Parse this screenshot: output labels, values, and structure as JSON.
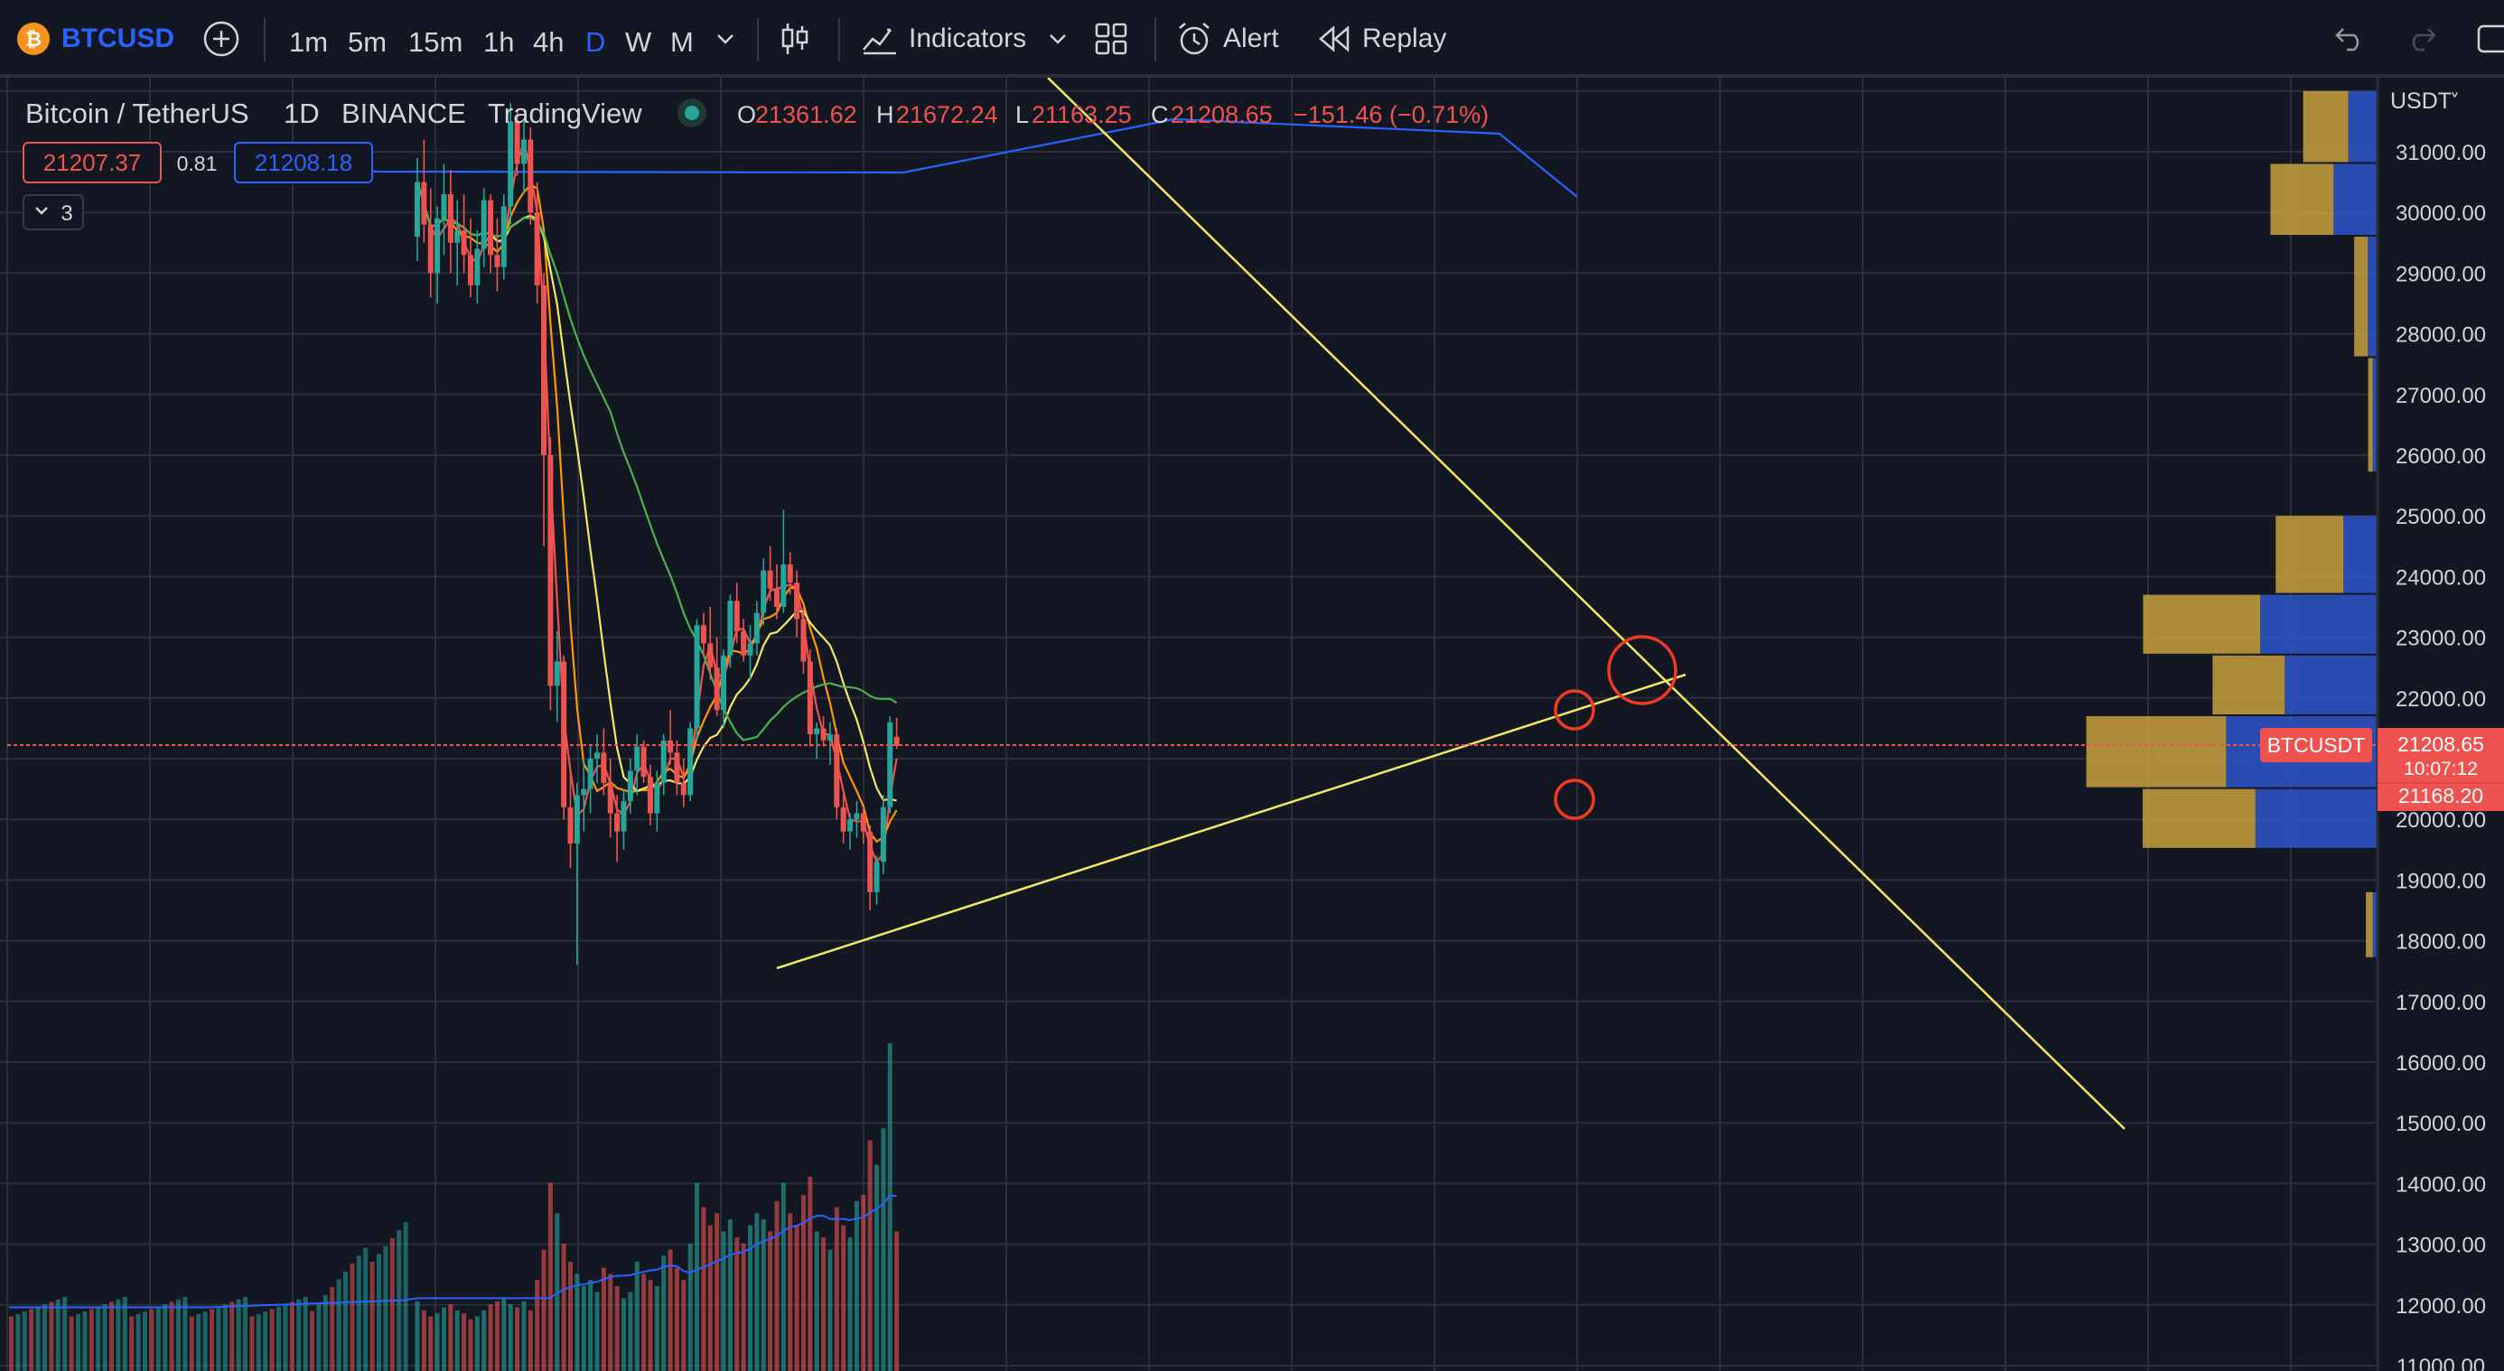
{
  "toolbar": {
    "symbol": "BTCUSD",
    "timeframes": [
      "1m",
      "5m",
      "15m",
      "1h",
      "4h",
      "D",
      "W",
      "M"
    ],
    "active_timeframe": "D",
    "indicators_label": "Indicators",
    "alert_label": "Alert",
    "replay_label": "Replay"
  },
  "legend": {
    "title": "Bitcoin / TetherUS",
    "interval": "1D",
    "exchange": "BINANCE",
    "source": "TradingView",
    "o_label": "O",
    "o": "21361.62",
    "h_label": "H",
    "h": "21672.24",
    "l_label": "L",
    "l": "21163.25",
    "c_label": "C",
    "c": "21208.65",
    "change": "−151.46 (−0.71%)",
    "bid": "21207.37",
    "spread": "0.81",
    "ask": "21208.18",
    "indicators_count": "3"
  },
  "price_axis": {
    "currency": "USDT",
    "ticks": [
      "31000.00",
      "30000.00",
      "29000.00",
      "28000.00",
      "27000.00",
      "26000.00",
      "25000.00",
      "24000.00",
      "23000.00",
      "22000.00",
      "21000.00",
      "20000.00",
      "19000.00",
      "18000.00",
      "17000.00",
      "16000.00",
      "15000.00",
      "14000.00",
      "13000.00",
      "12000.00",
      "11000.00"
    ],
    "symbol_tag": "BTCUSDT",
    "last_price": "21208.65",
    "countdown": "10:07:12",
    "low_price": "21168.20"
  },
  "colors": {
    "background": "#131722",
    "grid": "#2a2e39",
    "up": "#26a69a",
    "down": "#ef5350",
    "trendline": "#f5e663",
    "circle": "#ef3a24",
    "ma_red": "#ef5350",
    "ma_orange": "#ff9800",
    "ma_yellow": "#f5e663",
    "ma_green": "#4caf50",
    "ma_blue": "#2962ff",
    "vp_up": "#c8a13c",
    "vp_down": "#2f56c9"
  },
  "chart_data": {
    "type": "candlestick",
    "symbol": "Bitcoin / TetherUS",
    "interval": "1D",
    "ylim": [
      10800,
      32500
    ],
    "ohlc": [
      [
        29600,
        30900,
        29200,
        30500
      ],
      [
        30500,
        31200,
        29500,
        29800
      ],
      [
        29800,
        30400,
        28600,
        29000
      ],
      [
        29000,
        30100,
        28500,
        29900
      ],
      [
        29900,
        30800,
        29300,
        30300
      ],
      [
        30300,
        30700,
        29000,
        29500
      ],
      [
        29500,
        30200,
        28800,
        29700
      ],
      [
        29700,
        30300,
        29000,
        29300
      ],
      [
        29300,
        29900,
        28600,
        28800
      ],
      [
        28800,
        29700,
        28500,
        29400
      ],
      [
        29400,
        30400,
        29100,
        30200
      ],
      [
        30200,
        30300,
        29000,
        29300
      ],
      [
        29300,
        29900,
        28700,
        29100
      ],
      [
        29100,
        30300,
        28900,
        30100
      ],
      [
        30100,
        31800,
        29800,
        31500
      ],
      [
        31500,
        31700,
        30600,
        30800
      ],
      [
        30800,
        31500,
        30300,
        31200
      ],
      [
        31200,
        31400,
        29800,
        30000
      ],
      [
        30000,
        30500,
        28500,
        28800
      ],
      [
        28800,
        29000,
        24500,
        26000
      ],
      [
        26000,
        26300,
        21800,
        22200
      ],
      [
        22200,
        23100,
        21600,
        22600
      ],
      [
        22600,
        22700,
        20000,
        20200
      ],
      [
        20200,
        20800,
        19200,
        19600
      ],
      [
        19600,
        20600,
        17600,
        20400
      ],
      [
        20400,
        21000,
        19800,
        20500
      ],
      [
        20500,
        21200,
        20100,
        21000
      ],
      [
        21000,
        21400,
        20600,
        21100
      ],
      [
        21100,
        21500,
        20400,
        20600
      ],
      [
        20600,
        21000,
        19700,
        20100
      ],
      [
        20100,
        20400,
        19300,
        19800
      ],
      [
        19800,
        20500,
        19500,
        20300
      ],
      [
        20300,
        21000,
        20100,
        20800
      ],
      [
        20800,
        21400,
        20400,
        21200
      ],
      [
        21200,
        21300,
        20600,
        20700
      ],
      [
        20700,
        20900,
        19900,
        20100
      ],
      [
        20100,
        20800,
        19800,
        20600
      ],
      [
        20600,
        21400,
        20400,
        21300
      ],
      [
        21300,
        21800,
        20900,
        21100
      ],
      [
        21100,
        21300,
        20400,
        20600
      ],
      [
        20600,
        21000,
        20200,
        20400
      ],
      [
        20400,
        21600,
        20300,
        21500
      ],
      [
        21500,
        23300,
        21300,
        23200
      ],
      [
        23200,
        23400,
        22700,
        22900
      ],
      [
        22900,
        23500,
        22300,
        22500
      ],
      [
        22500,
        23000,
        21700,
        21800
      ],
      [
        21800,
        22800,
        21500,
        22700
      ],
      [
        22700,
        23700,
        22500,
        23600
      ],
      [
        23600,
        23900,
        22900,
        23100
      ],
      [
        23100,
        23300,
        22600,
        22700
      ],
      [
        22700,
        23200,
        22300,
        22900
      ],
      [
        22900,
        23600,
        22700,
        23400
      ],
      [
        23400,
        24300,
        23200,
        24100
      ],
      [
        24100,
        24500,
        23600,
        23800
      ],
      [
        23800,
        24200,
        23300,
        23500
      ],
      [
        23500,
        25100,
        23400,
        24200
      ],
      [
        24200,
        24400,
        23700,
        23900
      ],
      [
        23900,
        24100,
        23000,
        23300
      ],
      [
        23300,
        23500,
        22400,
        22600
      ],
      [
        22600,
        22800,
        21200,
        21400
      ],
      [
        21400,
        21600,
        21000,
        21500
      ],
      [
        21500,
        21700,
        21200,
        21300
      ],
      [
        21300,
        21600,
        20900,
        21400
      ],
      [
        21400,
        21500,
        20000,
        20200
      ],
      [
        20200,
        20400,
        19600,
        19800
      ],
      [
        19800,
        20100,
        19500,
        20000
      ],
      [
        20000,
        20300,
        19700,
        20100
      ],
      [
        20100,
        20200,
        19600,
        19800
      ],
      [
        19800,
        19900,
        18500,
        18800
      ],
      [
        18800,
        19400,
        18600,
        19300
      ],
      [
        19300,
        20400,
        19100,
        20200
      ],
      [
        20200,
        21700,
        20100,
        21600
      ],
      [
        21361.62,
        21672.24,
        21163.25,
        21208.65
      ]
    ],
    "volume": [
      11950,
      11800,
      11700,
      11750,
      11850,
      11900,
      11800,
      11750,
      11650,
      11700,
      11800,
      11900,
      11950,
      12000,
      11900,
      11850,
      11950,
      11800,
      12300,
      12800,
      13900,
      13400,
      12900,
      12600,
      12400,
      12200,
      12300,
      12100,
      12500,
      12400,
      12200,
      12000,
      12100,
      12600,
      12400,
      12300,
      12200,
      12700,
      12800,
      12500,
      12300,
      12900,
      13900,
      13500,
      13200,
      13400,
      13100,
      13300,
      13000,
      12900,
      13200,
      13400,
      13300,
      13100,
      13600,
      13900,
      13400,
      13200,
      13700,
      14000,
      13100,
      13000,
      12800,
      13500,
      13200,
      13000,
      13600,
      13700,
      14600,
      14200,
      14800,
      16200,
      13100
    ],
    "moving_averages": [
      {
        "name": "MA red",
        "color": "#ef5350"
      },
      {
        "name": "MA orange",
        "color": "#ff9800"
      },
      {
        "name": "MA yellow",
        "color": "#f5e663"
      },
      {
        "name": "MA green",
        "color": "#4caf50"
      },
      {
        "name": "MA blue",
        "color": "#2962ff"
      }
    ],
    "trendlines": [
      {
        "from": [
          22,
          17500
        ],
        "to": [
          81,
          22300
        ]
      },
      {
        "from": [
          14,
          32200
        ],
        "to": [
          63,
          14800
        ]
      }
    ],
    "volume_profile": [
      {
        "price_from": 30800,
        "price_to": 32000,
        "up": 0.2,
        "down": 0.12
      },
      {
        "price_from": 29600,
        "price_to": 30800,
        "up": 0.28,
        "down": 0.18
      },
      {
        "price_from": 27600,
        "price_to": 29600,
        "up": 0.06,
        "down": 0.04
      },
      {
        "price_from": 25700,
        "price_to": 27600,
        "up": 0.02,
        "down": 0.02
      },
      {
        "price_from": 23700,
        "price_to": 25000,
        "up": 0.3,
        "down": 0.14
      },
      {
        "price_from": 22700,
        "price_to": 23700,
        "up": 0.52,
        "down": 0.48
      },
      {
        "price_from": 21700,
        "price_to": 22700,
        "up": 0.32,
        "down": 0.38
      },
      {
        "price_from": 20500,
        "price_to": 21700,
        "up": 0.62,
        "down": 0.62
      },
      {
        "price_from": 19500,
        "price_to": 20500,
        "up": 0.5,
        "down": 0.5
      },
      {
        "price_from": 17700,
        "price_to": 18800,
        "up": 0.03,
        "down": 0.02
      }
    ]
  }
}
